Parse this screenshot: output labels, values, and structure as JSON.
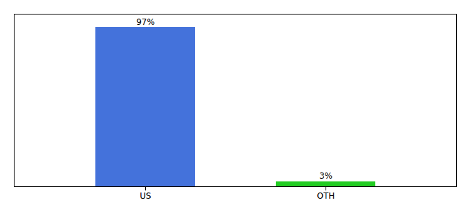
{
  "chart_data": {
    "type": "bar",
    "categories": [
      "US",
      "OTH"
    ],
    "values": [
      97,
      3
    ],
    "value_labels": [
      "97%",
      "3%"
    ],
    "colors": [
      "#4472db",
      "#22cc22"
    ],
    "ylim": [
      0,
      105
    ],
    "data_labels": true,
    "tick_labels": "x"
  }
}
